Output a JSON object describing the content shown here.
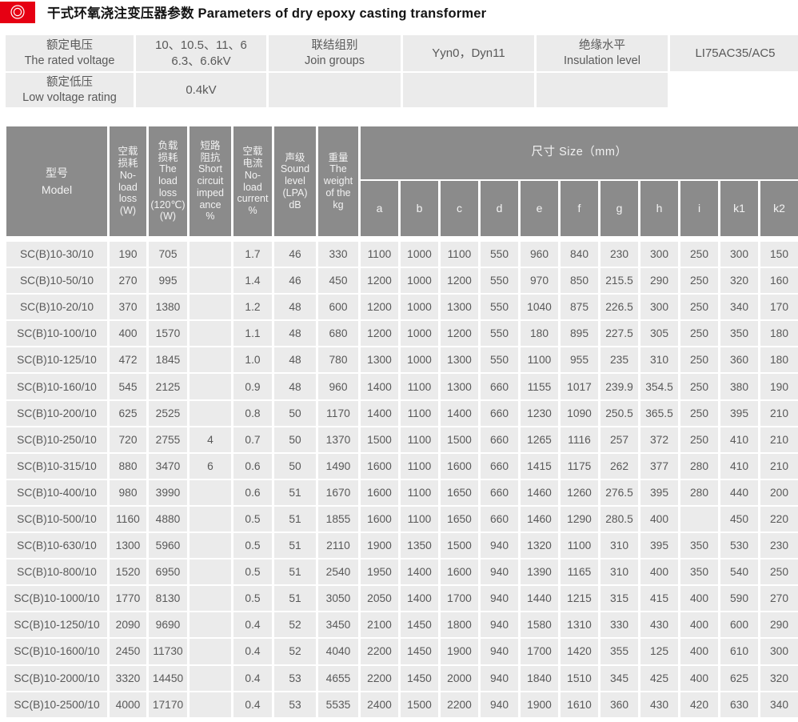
{
  "header": {
    "title": "干式环氧浇注变压器参数 Parameters of dry epoxy casting transformer",
    "logo_icon": "double-ring-emblem-icon"
  },
  "colors": {
    "accent_red": "#e60013",
    "table_header_gray": "#8b8b8b",
    "cell_gray": "#ebebeb",
    "text_gray": "#595959"
  },
  "info_table": {
    "rated_voltage_label_cn": "额定电压",
    "rated_voltage_label_en": "The rated voltage",
    "rated_voltage_value": "10、10.5、11、6\n6.3、6.6kV",
    "join_groups_label_cn": "联结组别",
    "join_groups_label_en": "Join groups",
    "join_groups_value": "Yyn0，Dyn11",
    "insulation_label_cn": "绝缘水平",
    "insulation_label_en": "Insulation level",
    "insulation_value": "LI75AC35/AC5",
    "low_voltage_label_cn": "额定低压",
    "low_voltage_label_en": "Low voltage rating",
    "low_voltage_value": "0.4kV"
  },
  "table": {
    "headers": {
      "model": "型号\nModel",
      "no_load_loss": "空载\n损耗\nNo-\nload\nloss\n(W)",
      "load_loss": "负载\n损耗\nThe\nload\nloss\n(120℃)\n(W)",
      "short_circuit_impedance": "短路\n阻抗\nShort\ncircuit\nimped\nance\n%",
      "no_load_current": "空载\n电流\nNo-\nload\ncurrent\n%",
      "sound_level": "声级\nSound\nlevel\n(LPA)\ndB",
      "weight": "重量\nThe\nweight\nof the\nkg",
      "size_group": "尺寸 Size（mm）",
      "size_cols": [
        "a",
        "b",
        "c",
        "d",
        "e",
        "f",
        "g",
        "h",
        "i",
        "k1",
        "k2"
      ]
    },
    "rows": [
      [
        "SC(B)10-30/10",
        "190",
        "705",
        "",
        "1.7",
        "46",
        "330",
        "1100",
        "1000",
        "1100",
        "550",
        "960",
        "840",
        "230",
        "300",
        "250",
        "300",
        "150"
      ],
      [
        "SC(B)10-50/10",
        "270",
        "995",
        "",
        "1.4",
        "46",
        "450",
        "1200",
        "1000",
        "1200",
        "550",
        "970",
        "850",
        "215.5",
        "290",
        "250",
        "320",
        "160"
      ],
      [
        "SC(B)10-20/10",
        "370",
        "1380",
        "",
        "1.2",
        "48",
        "600",
        "1200",
        "1000",
        "1300",
        "550",
        "1040",
        "875",
        "226.5",
        "300",
        "250",
        "340",
        "170"
      ],
      [
        "SC(B)10-100/10",
        "400",
        "1570",
        "",
        "1.1",
        "48",
        "680",
        "1200",
        "1000",
        "1200",
        "550",
        "180",
        "895",
        "227.5",
        "305",
        "250",
        "350",
        "180"
      ],
      [
        "SC(B)10-125/10",
        "472",
        "1845",
        "",
        "1.0",
        "48",
        "780",
        "1300",
        "1000",
        "1300",
        "550",
        "1100",
        "955",
        "235",
        "310",
        "250",
        "360",
        "180"
      ],
      [
        "SC(B)10-160/10",
        "545",
        "2125",
        "",
        "0.9",
        "48",
        "960",
        "1400",
        "1100",
        "1300",
        "660",
        "1155",
        "1017",
        "239.9",
        "354.5",
        "250",
        "380",
        "190"
      ],
      [
        "SC(B)10-200/10",
        "625",
        "2525",
        "",
        "0.8",
        "50",
        "1170",
        "1400",
        "1100",
        "1400",
        "660",
        "1230",
        "1090",
        "250.5",
        "365.5",
        "250",
        "395",
        "210"
      ],
      [
        "SC(B)10-250/10",
        "720",
        "2755",
        "4",
        "0.7",
        "50",
        "1370",
        "1500",
        "1100",
        "1500",
        "660",
        "1265",
        "1116",
        "257",
        "372",
        "250",
        "410",
        "210"
      ],
      [
        "SC(B)10-315/10",
        "880",
        "3470",
        "6",
        "0.6",
        "50",
        "1490",
        "1600",
        "1100",
        "1600",
        "660",
        "1415",
        "1175",
        "262",
        "377",
        "280",
        "410",
        "210"
      ],
      [
        "SC(B)10-400/10",
        "980",
        "3990",
        "",
        "0.6",
        "51",
        "1670",
        "1600",
        "1100",
        "1650",
        "660",
        "1460",
        "1260",
        "276.5",
        "395",
        "280",
        "440",
        "200"
      ],
      [
        "SC(B)10-500/10",
        "1160",
        "4880",
        "",
        "0.5",
        "51",
        "1855",
        "1600",
        "1100",
        "1650",
        "660",
        "1460",
        "1290",
        "280.5",
        "400",
        "",
        "450",
        "220"
      ],
      [
        "SC(B)10-630/10",
        "1300",
        "5960",
        "",
        "0.5",
        "51",
        "2110",
        "1900",
        "1350",
        "1500",
        "940",
        "1320",
        "1100",
        "310",
        "395",
        "350",
        "530",
        "230"
      ],
      [
        "SC(B)10-800/10",
        "1520",
        "6950",
        "",
        "0.5",
        "51",
        "2540",
        "1950",
        "1400",
        "1600",
        "940",
        "1390",
        "1165",
        "310",
        "400",
        "350",
        "540",
        "250"
      ],
      [
        "SC(B)10-1000/10",
        "1770",
        "8130",
        "",
        "0.5",
        "51",
        "3050",
        "2050",
        "1400",
        "1700",
        "940",
        "1440",
        "1215",
        "315",
        "415",
        "400",
        "590",
        "270"
      ],
      [
        "SC(B)10-1250/10",
        "2090",
        "9690",
        "",
        "0.4",
        "52",
        "3450",
        "2100",
        "1450",
        "1800",
        "940",
        "1580",
        "1310",
        "330",
        "430",
        "400",
        "600",
        "290"
      ],
      [
        "SC(B)10-1600/10",
        "2450",
        "11730",
        "",
        "0.4",
        "52",
        "4040",
        "2200",
        "1450",
        "1900",
        "940",
        "1700",
        "1420",
        "355",
        "125",
        "400",
        "610",
        "300"
      ],
      [
        "SC(B)10-2000/10",
        "3320",
        "14450",
        "",
        "0.4",
        "53",
        "4655",
        "2200",
        "1450",
        "2000",
        "940",
        "1840",
        "1510",
        "345",
        "425",
        "400",
        "625",
        "320"
      ],
      [
        "SC(B)10-2500/10",
        "4000",
        "17170",
        "",
        "0.4",
        "53",
        "5535",
        "2400",
        "1500",
        "2200",
        "940",
        "1900",
        "1610",
        "360",
        "430",
        "420",
        "630",
        "340"
      ]
    ]
  }
}
